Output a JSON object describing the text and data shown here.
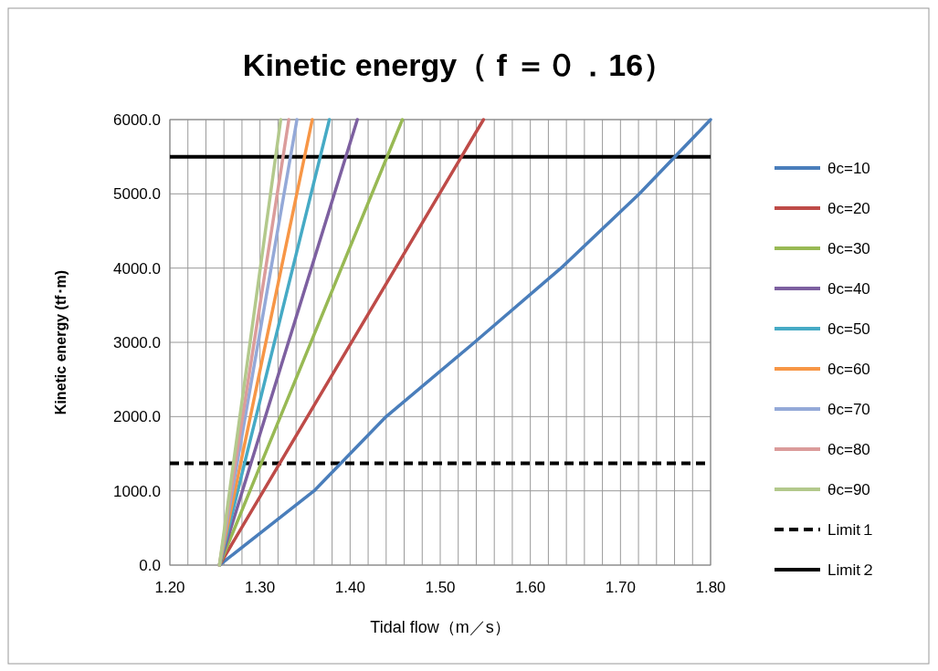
{
  "chart_data": {
    "type": "line",
    "title": "Kinetic energy（ f ＝０．16）",
    "xlabel": "Tidal flow（m／s）",
    "ylabel": "Kinetic energy (tf･m)",
    "xlim": [
      1.2,
      1.8
    ],
    "xticks": [
      {
        "value": 1.2,
        "label": "1.20"
      },
      {
        "value": 1.22,
        "label": null
      },
      {
        "value": 1.24,
        "label": null
      },
      {
        "value": 1.26,
        "label": null
      },
      {
        "value": 1.28,
        "label": null
      },
      {
        "value": 1.3,
        "label": "1.30"
      },
      {
        "value": 1.32,
        "label": null
      },
      {
        "value": 1.34,
        "label": null
      },
      {
        "value": 1.36,
        "label": null
      },
      {
        "value": 1.38,
        "label": null
      },
      {
        "value": 1.4,
        "label": "1.40"
      },
      {
        "value": 1.42,
        "label": null
      },
      {
        "value": 1.44,
        "label": null
      },
      {
        "value": 1.46,
        "label": null
      },
      {
        "value": 1.48,
        "label": null
      },
      {
        "value": 1.5,
        "label": "1.50"
      },
      {
        "value": 1.52,
        "label": null
      },
      {
        "value": 1.54,
        "label": null
      },
      {
        "value": 1.56,
        "label": null
      },
      {
        "value": 1.58,
        "label": null
      },
      {
        "value": 1.6,
        "label": "1.60"
      },
      {
        "value": 1.62,
        "label": null
      },
      {
        "value": 1.64,
        "label": null
      },
      {
        "value": 1.66,
        "label": null
      },
      {
        "value": 1.68,
        "label": null
      },
      {
        "value": 1.7,
        "label": "1.70"
      },
      {
        "value": 1.72,
        "label": null
      },
      {
        "value": 1.74,
        "label": null
      },
      {
        "value": 1.76,
        "label": null
      },
      {
        "value": 1.78,
        "label": null
      },
      {
        "value": 1.8,
        "label": "1.80"
      }
    ],
    "ylim": [
      0,
      6000
    ],
    "yticks": [
      {
        "value": 0,
        "label": "0.0"
      },
      {
        "value": 1000,
        "label": "1000.0"
      },
      {
        "value": 2000,
        "label": "2000.0"
      },
      {
        "value": 3000,
        "label": "3000.0"
      },
      {
        "value": 4000,
        "label": "4000.0"
      },
      {
        "value": 5000,
        "label": "5000.0"
      },
      {
        "value": 6000,
        "label": "6000.0"
      }
    ],
    "grid": true,
    "legend": "right",
    "line_style": "solid",
    "series": [
      {
        "name": "θc=10",
        "color": "#4a7ebb",
        "x": [
          1.255,
          1.36,
          1.44,
          1.538,
          1.634,
          1.721,
          1.8
        ],
        "values": [
          0,
          1000,
          2000,
          3000,
          4000,
          5000,
          6000
        ]
      },
      {
        "name": "θc=20",
        "color": "#be4b48",
        "x": [
          1.255,
          1.548
        ],
        "values": [
          0,
          6000
        ]
      },
      {
        "name": "θc=30",
        "color": "#98b954",
        "x": [
          1.255,
          1.458
        ],
        "values": [
          0,
          6000
        ]
      },
      {
        "name": "θc=40",
        "color": "#7d60a0",
        "x": [
          1.255,
          1.408
        ],
        "values": [
          0,
          6000
        ]
      },
      {
        "name": "θc=50",
        "color": "#46aac5",
        "x": [
          1.255,
          1.377
        ],
        "values": [
          0,
          6000
        ]
      },
      {
        "name": "θc=60",
        "color": "#f79646",
        "x": [
          1.255,
          1.358
        ],
        "values": [
          0,
          6000
        ]
      },
      {
        "name": "θc=70",
        "color": "#94a9d8",
        "x": [
          1.255,
          1.341
        ],
        "values": [
          0,
          6000
        ]
      },
      {
        "name": "θc=80",
        "color": "#db9c9b",
        "x": [
          1.255,
          1.332
        ],
        "values": [
          0,
          6000
        ]
      },
      {
        "name": "θc=90",
        "color": "#b3c98c",
        "x": [
          1.255,
          1.323
        ],
        "values": [
          0,
          6000
        ]
      }
    ],
    "ref_lines": [
      {
        "axis": "y",
        "value": 1370,
        "label": "Limit１",
        "color": "#000000",
        "line_style": "dashed"
      },
      {
        "axis": "y",
        "value": 5500,
        "label": "Limit２",
        "color": "#000000",
        "line_style": "solid"
      }
    ]
  }
}
